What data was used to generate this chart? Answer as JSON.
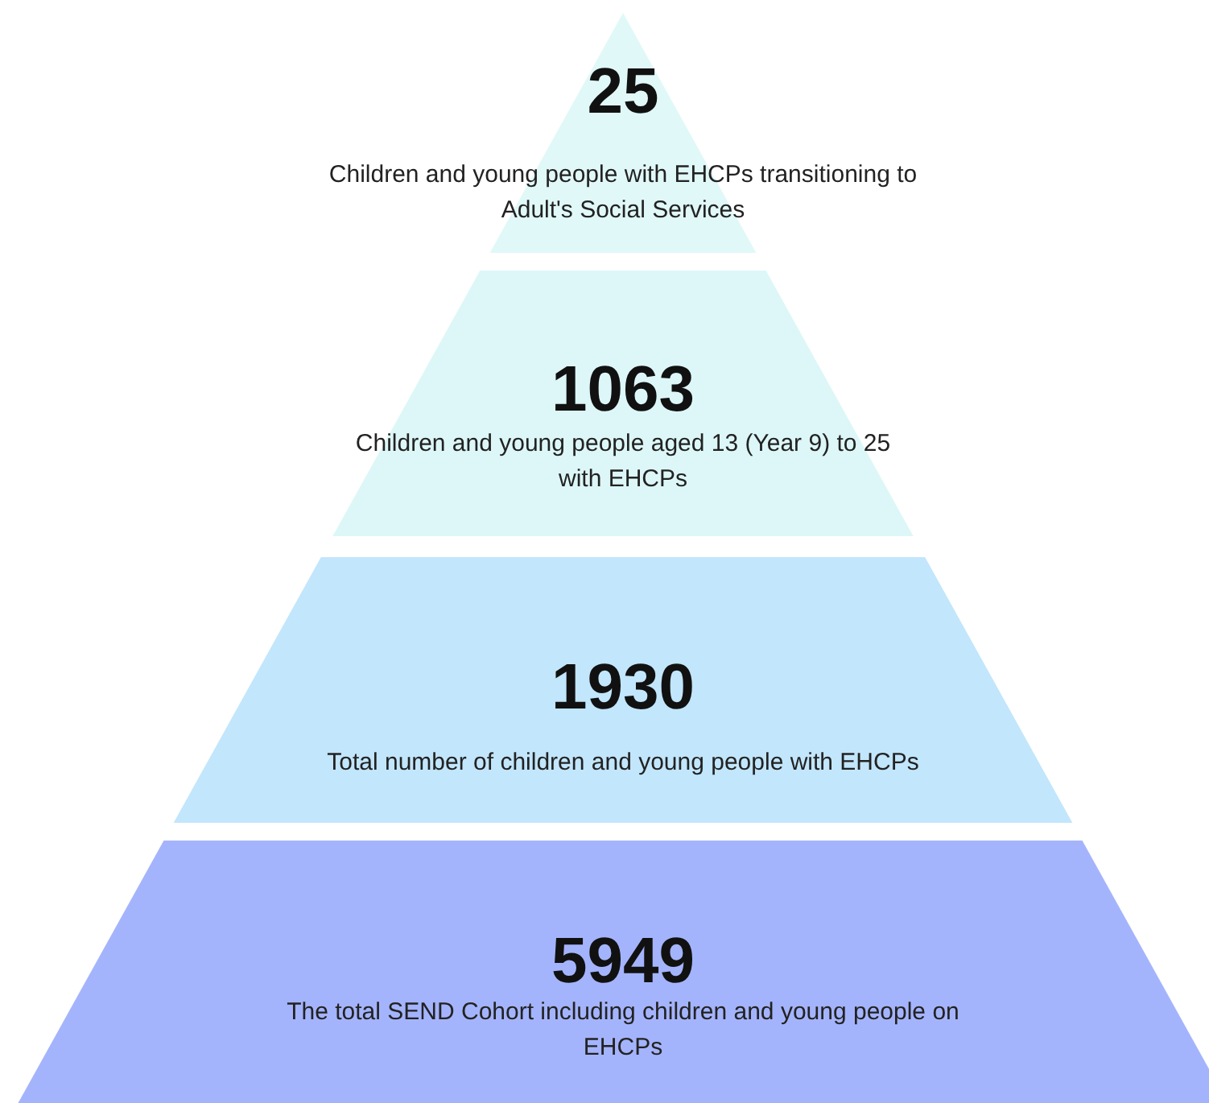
{
  "chart_data": {
    "type": "other",
    "categories": [
      "Children and young people with EHCPs transitioning to Adult's Social Services",
      "Children and young people aged 13 (Year 9) to 25 with EHCPs",
      "Total number of children and young people with EHCPs",
      "The total SEND Cohort including children and young people on EHCPs"
    ],
    "values": [
      25,
      1063,
      1930,
      5949
    ],
    "data_labels": true,
    "colors": [
      "#e1f8f8",
      "#ddf7f8",
      "#c2e6fc",
      "#a4b4fc"
    ]
  }
}
